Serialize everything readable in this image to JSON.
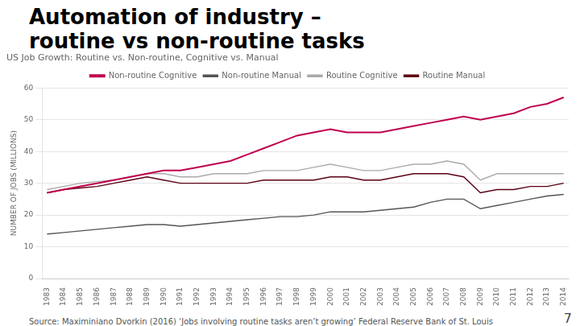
{
  "title": [
    "Automation of industry –",
    "routine vs non-routine tasks"
  ],
  "chart_data": {
    "type": "line",
    "title": "US Job Growth: Routine vs. Non-routine, Cognitive vs. Manual",
    "ylabel": "NUMBER OF JOBS (MILLIONS)",
    "annotations": [
      "Source: Maximiniano Dvorkin (2016) ‘Jobs involving routine tasks aren’t growing’ Federal Reserve Bank of St. Louis",
      "7"
    ],
    "x": [
      1983,
      1984,
      1985,
      1986,
      1987,
      1988,
      1989,
      1990,
      1991,
      1992,
      1993,
      1994,
      1995,
      1996,
      1997,
      1998,
      1999,
      2000,
      2001,
      2002,
      2003,
      2004,
      2005,
      2006,
      2007,
      2008,
      2009,
      2010,
      2011,
      2012,
      2013,
      2014
    ],
    "series": [
      {
        "name": "Non-routine Cognitive",
        "color": "#c0004e",
        "values": [
          27,
          28,
          29,
          30,
          31,
          32,
          33,
          34,
          34,
          35,
          36,
          37,
          39,
          41,
          43,
          45,
          46,
          47,
          46,
          46,
          46,
          47,
          48,
          49,
          50,
          51,
          50,
          51,
          52,
          54,
          55,
          57
        ]
      },
      {
        "name": "Non-routine Manual",
        "color": "#555555",
        "values": [
          14,
          14.5,
          15,
          15.5,
          16,
          16.5,
          17,
          17,
          16.5,
          17,
          17.5,
          18,
          18.5,
          19,
          19.5,
          19.5,
          20,
          21,
          21,
          21,
          21.5,
          22,
          22.5,
          24,
          25,
          25,
          22,
          23,
          24,
          25,
          26,
          26.5
        ]
      },
      {
        "name": "Routine Cognitive",
        "color": "#aaaaaa",
        "values": [
          28,
          29,
          30,
          30.5,
          31,
          32,
          33,
          33,
          32,
          32,
          33,
          33,
          33,
          34,
          34,
          34,
          35,
          36,
          35,
          34,
          34,
          35,
          36,
          36,
          37,
          36,
          31,
          33,
          33,
          33,
          33,
          33
        ]
      },
      {
        "name": "Routine Manual",
        "color": "#5c0015",
        "values": [
          27,
          28,
          28.5,
          29,
          30,
          31,
          32,
          31,
          30,
          30,
          30,
          30,
          30,
          31,
          31,
          31,
          31,
          32,
          32,
          31,
          31,
          32,
          33,
          33,
          33,
          32,
          27,
          28,
          28,
          29,
          29,
          30
        ]
      }
    ],
    "xlim": [
      1982.7,
      2014.3
    ],
    "xticks": [
      1983,
      1984,
      1985,
      1986,
      1987,
      1988,
      1989,
      1990,
      1991,
      1992,
      1993,
      1994,
      1995,
      1996,
      1997,
      1998,
      1999,
      2000,
      2001,
      2002,
      2003,
      2004,
      2005,
      2006,
      2007,
      2008,
      2009,
      2010,
      2011,
      2012,
      2013,
      2014
    ],
    "ylim": [
      0,
      60
    ],
    "yticks": [
      0,
      10,
      20,
      30,
      40,
      50,
      60
    ],
    "grid": "y",
    "legend": "top"
  }
}
